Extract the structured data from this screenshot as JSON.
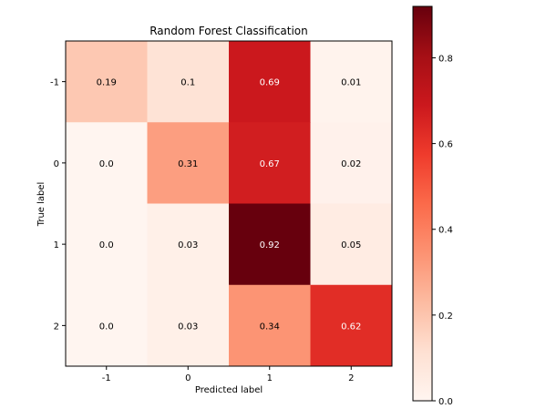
{
  "chart_data": {
    "type": "heatmap",
    "title": "Random Forest Classification",
    "xlabel": "Predicted label",
    "ylabel": "True label",
    "x_categories": [
      "-1",
      "0",
      "1",
      "2"
    ],
    "y_categories": [
      "-1",
      "0",
      "1",
      "2"
    ],
    "values": [
      [
        0.19,
        0.1,
        0.69,
        0.01
      ],
      [
        0.0,
        0.31,
        0.67,
        0.02
      ],
      [
        0.0,
        0.03,
        0.92,
        0.05
      ],
      [
        0.0,
        0.03,
        0.34,
        0.62
      ]
    ],
    "cell_labels": [
      [
        "0.19",
        "0.1",
        "0.69",
        "0.01"
      ],
      [
        "0.0",
        "0.31",
        "0.67",
        "0.02"
      ],
      [
        "0.0",
        "0.03",
        "0.92",
        "0.05"
      ],
      [
        "0.0",
        "0.03",
        "0.34",
        "0.62"
      ]
    ],
    "colormap": "Reds",
    "colorbar": {
      "range": [
        0.0,
        0.92
      ],
      "ticks": [
        0.0,
        0.2,
        0.4,
        0.6,
        0.8
      ],
      "tick_labels": [
        "0.0",
        "0.2",
        "0.4",
        "0.6",
        "0.8"
      ]
    },
    "grid": false
  }
}
